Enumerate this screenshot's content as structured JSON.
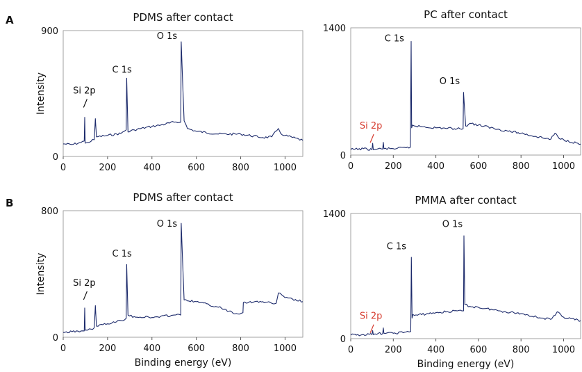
{
  "panel_labels": [
    "A",
    "B"
  ],
  "colors": {
    "spectrum": "#1c2a6b",
    "si_label": "#d63b2e",
    "text": "#111111"
  },
  "chart_data": [
    {
      "type": "line",
      "panel": "A",
      "title": "PDMS after contact",
      "xlabel": "",
      "ylabel": "Intensity",
      "xlim": [
        0,
        1080
      ],
      "ylim": [
        0,
        900
      ],
      "xticks": [
        0,
        200,
        400,
        600,
        800,
        1000
      ],
      "yticks": [
        0,
        900
      ],
      "grid": false,
      "x": [
        0,
        40,
        80,
        95,
        97,
        99,
        110,
        140,
        145,
        150,
        200,
        260,
        284,
        286,
        292,
        320,
        400,
        440,
        500,
        530,
        532,
        545,
        560,
        600,
        700,
        800,
        900,
        940,
        970,
        980,
        1000,
        1080
      ],
      "y": [
        90,
        85,
        100,
        110,
        280,
        95,
        100,
        120,
        270,
        140,
        150,
        165,
        190,
        560,
        175,
        190,
        215,
        225,
        245,
        245,
        820,
        255,
        200,
        180,
        160,
        160,
        135,
        140,
        200,
        165,
        150,
        115
      ],
      "annotations": [
        {
          "text": "Si 2p",
          "x": 95,
          "y": 450,
          "color": "#111111"
        },
        {
          "text": "C 1s",
          "x": 265,
          "y": 600,
          "color": "#111111"
        },
        {
          "text": "O 1s",
          "x": 468,
          "y": 840,
          "color": "#111111"
        }
      ]
    },
    {
      "type": "line",
      "panel": "A",
      "title": "PC after contact",
      "xlabel": "",
      "ylabel": "",
      "xlim": [
        0,
        1080
      ],
      "ylim": [
        0,
        1400
      ],
      "xticks": [
        0,
        200,
        400,
        600,
        800,
        1000
      ],
      "yticks": [
        0,
        1400
      ],
      "grid": false,
      "x": [
        0,
        60,
        100,
        103,
        106,
        130,
        150,
        153,
        156,
        200,
        260,
        280,
        284,
        286,
        290,
        300,
        400,
        500,
        528,
        530,
        540,
        560,
        600,
        700,
        800,
        900,
        940,
        960,
        980,
        1000,
        1080
      ],
      "y": [
        60,
        70,
        60,
        130,
        60,
        70,
        65,
        140,
        70,
        70,
        80,
        85,
        1250,
        300,
        330,
        320,
        300,
        290,
        290,
        690,
        320,
        350,
        330,
        280,
        240,
        190,
        175,
        240,
        180,
        170,
        120
      ],
      "annotations": [
        {
          "text": "Si 2p",
          "x": 95,
          "y": 290,
          "color": "#d63b2e"
        },
        {
          "text": "C 1s",
          "x": 205,
          "y": 1250,
          "color": "#111111"
        },
        {
          "text": "O 1s",
          "x": 465,
          "y": 780,
          "color": "#111111"
        }
      ]
    },
    {
      "type": "line",
      "panel": "B",
      "title": "PDMS after contact",
      "xlabel": "Binding energy (eV)",
      "ylabel": "Intensity",
      "xlim": [
        0,
        1080
      ],
      "ylim": [
        0,
        800
      ],
      "xticks": [
        0,
        200,
        400,
        600,
        800,
        1000
      ],
      "yticks": [
        0,
        800
      ],
      "grid": false,
      "x": [
        0,
        40,
        80,
        95,
        97,
        99,
        110,
        140,
        145,
        150,
        200,
        260,
        284,
        286,
        292,
        320,
        400,
        500,
        530,
        532,
        545,
        560,
        600,
        700,
        780,
        810,
        812,
        900,
        940,
        960,
        970,
        1000,
        1080
      ],
      "y": [
        30,
        35,
        40,
        40,
        185,
        45,
        45,
        60,
        200,
        70,
        85,
        105,
        120,
        460,
        140,
        130,
        125,
        140,
        140,
        720,
        235,
        230,
        225,
        190,
        150,
        155,
        220,
        225,
        215,
        215,
        280,
        250,
        225
      ],
      "annotations": [
        {
          "text": "Si 2p",
          "x": 95,
          "y": 325,
          "color": "#111111"
        },
        {
          "text": "C 1s",
          "x": 265,
          "y": 510,
          "color": "#111111"
        },
        {
          "text": "O 1s",
          "x": 468,
          "y": 700,
          "color": "#111111"
        }
      ]
    },
    {
      "type": "line",
      "panel": "B",
      "title": "PMMA after contact",
      "xlabel": "Binding energy (eV)",
      "ylabel": "",
      "xlim": [
        0,
        1080
      ],
      "ylim": [
        0,
        1400
      ],
      "xticks": [
        0,
        200,
        400,
        600,
        800,
        1000
      ],
      "yticks": [
        0,
        1400
      ],
      "grid": false,
      "x": [
        0,
        60,
        100,
        103,
        106,
        130,
        150,
        153,
        156,
        200,
        260,
        282,
        285,
        288,
        292,
        300,
        400,
        500,
        530,
        532,
        536,
        560,
        600,
        700,
        800,
        900,
        940,
        960,
        970,
        1000,
        1080
      ],
      "y": [
        40,
        45,
        45,
        90,
        45,
        60,
        55,
        120,
        60,
        60,
        75,
        80,
        910,
        230,
        270,
        260,
        290,
        310,
        310,
        1150,
        380,
        360,
        350,
        310,
        280,
        230,
        215,
        260,
        300,
        240,
        200
      ],
      "annotations": [
        {
          "text": "Si 2p",
          "x": 95,
          "y": 220,
          "color": "#d63b2e"
        },
        {
          "text": "C 1s",
          "x": 215,
          "y": 1000,
          "color": "#111111"
        },
        {
          "text": "O 1s",
          "x": 478,
          "y": 1250,
          "color": "#111111"
        }
      ]
    }
  ]
}
